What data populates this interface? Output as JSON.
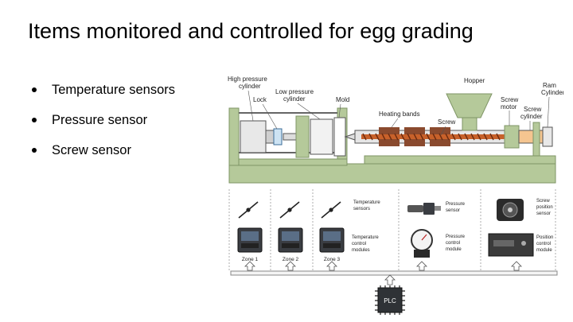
{
  "slide": {
    "title": "Items monitored and controlled for egg grading",
    "bullets": [
      "Temperature sensors",
      "Pressure sensor",
      "Screw sensor"
    ]
  },
  "machine": {
    "labels": {
      "high_pressure_cylinder": [
        "High pressure",
        "cylinder"
      ],
      "lock": "Lock",
      "low_pressure_cylinder": [
        "Low pressure",
        "cylinder"
      ],
      "mold": "Mold",
      "heating_bands": "Heating bands",
      "screw": "Screw",
      "hopper": "Hopper",
      "screw_motor": [
        "Screw",
        "motor"
      ],
      "screw_cylinder": [
        "Screw",
        "cylinder"
      ],
      "ram_cylinder": [
        "Ram",
        "Cylinder"
      ]
    },
    "colors": {
      "frame": "#b5c99a",
      "frame_dark": "#8aa070",
      "heater": "#8a4a2e",
      "screw": "#c8612a"
    }
  },
  "control": {
    "zones": [
      "Zone 1",
      "Zone 2",
      "Zone 3"
    ],
    "labels": {
      "temperature_sensors": [
        "Temperature",
        "sensors"
      ],
      "temperature_control_modules": [
        "Temperature",
        "control",
        "modules"
      ],
      "pressure_sensor": [
        "Pressure",
        "sensor"
      ],
      "pressure_control_module": [
        "Pressure",
        "control",
        "module"
      ],
      "screw_position_sensor": [
        "Screw",
        "position",
        "sensor"
      ],
      "position_control_module": [
        "Position",
        "control",
        "module"
      ]
    },
    "plc_label": "PLC"
  }
}
